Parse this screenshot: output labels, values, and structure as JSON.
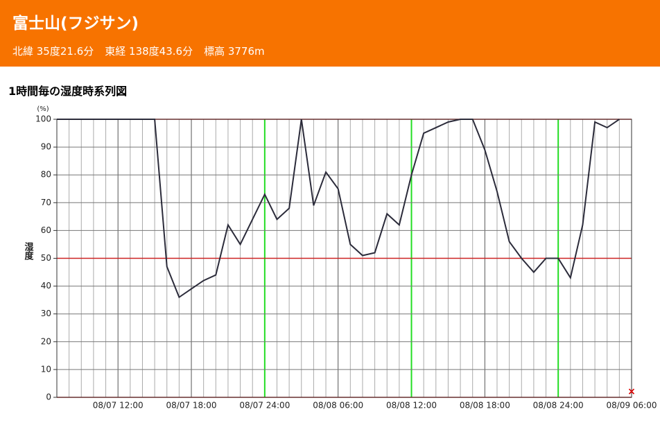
{
  "header": {
    "title": "富士山(フジサン)",
    "location": [
      "北緯 35度21.6分",
      "東経 138度43.6分",
      "標高 3776m"
    ]
  },
  "chart_data": {
    "type": "line",
    "title": "1時間毎の湿度時系列図",
    "y_unit": "(%)",
    "y_label": "湿度",
    "categories": [
      null,
      null,
      null,
      null,
      null,
      "08/07 12:00",
      null,
      null,
      null,
      null,
      null,
      "08/07 18:00",
      null,
      null,
      null,
      null,
      null,
      "08/07 24:00",
      null,
      null,
      null,
      null,
      null,
      "08/08 06:00",
      null,
      null,
      null,
      null,
      null,
      "08/08 12:00",
      null,
      null,
      null,
      null,
      null,
      "08/08 18:00",
      null,
      null,
      null,
      null,
      null,
      "08/08 24:00",
      null,
      null,
      null,
      null,
      null,
      "08/09 06:00"
    ],
    "values": [
      100,
      100,
      100,
      100,
      100,
      100,
      100,
      100,
      100,
      47,
      36,
      39,
      42,
      44,
      62,
      55,
      64,
      73,
      64,
      68,
      100,
      69,
      81,
      75,
      55,
      51,
      52,
      66,
      62,
      80,
      95,
      97,
      99,
      100,
      100,
      89,
      74,
      56,
      50,
      45,
      50,
      50,
      43,
      62,
      99,
      97,
      100,
      null
    ],
    "color": "#2b2b3a",
    "ylim": [
      0,
      100
    ],
    "yticks": [
      0,
      10,
      20,
      30,
      40,
      50,
      60,
      70,
      80,
      90,
      100
    ],
    "grid": true
  }
}
